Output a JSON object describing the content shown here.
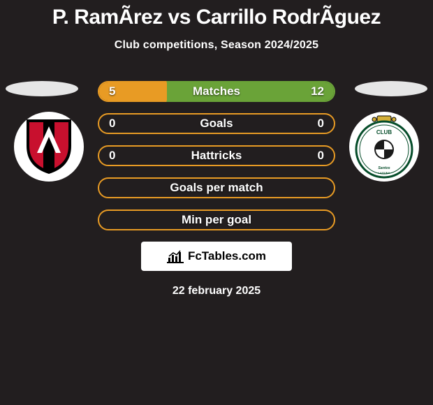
{
  "title": "P. RamÃ­rez vs Carrillo RodrÃ­guez",
  "subtitle": "Club competitions, Season 2024/2025",
  "date": "22 february 2025",
  "attribution": "FcTables.com",
  "colors": {
    "background": "#221e1f",
    "left_accent": "#e89b24",
    "right_accent": "#6aa338",
    "text": "#ffffff"
  },
  "left_club": {
    "name": "Atlas"
  },
  "right_club": {
    "name": "Santos Laguna"
  },
  "rows": [
    {
      "label": "Matches",
      "left": "5",
      "right": "12",
      "left_pct": 29,
      "right_pct": 71,
      "show_vals": true
    },
    {
      "label": "Goals",
      "left": "0",
      "right": "0",
      "left_pct": 0,
      "right_pct": 0,
      "show_vals": true
    },
    {
      "label": "Hattricks",
      "left": "0",
      "right": "0",
      "left_pct": 0,
      "right_pct": 0,
      "show_vals": true
    },
    {
      "label": "Goals per match",
      "left": "",
      "right": "",
      "left_pct": 0,
      "right_pct": 0,
      "show_vals": false
    },
    {
      "label": "Min per goal",
      "left": "",
      "right": "",
      "left_pct": 0,
      "right_pct": 0,
      "show_vals": false
    }
  ]
}
